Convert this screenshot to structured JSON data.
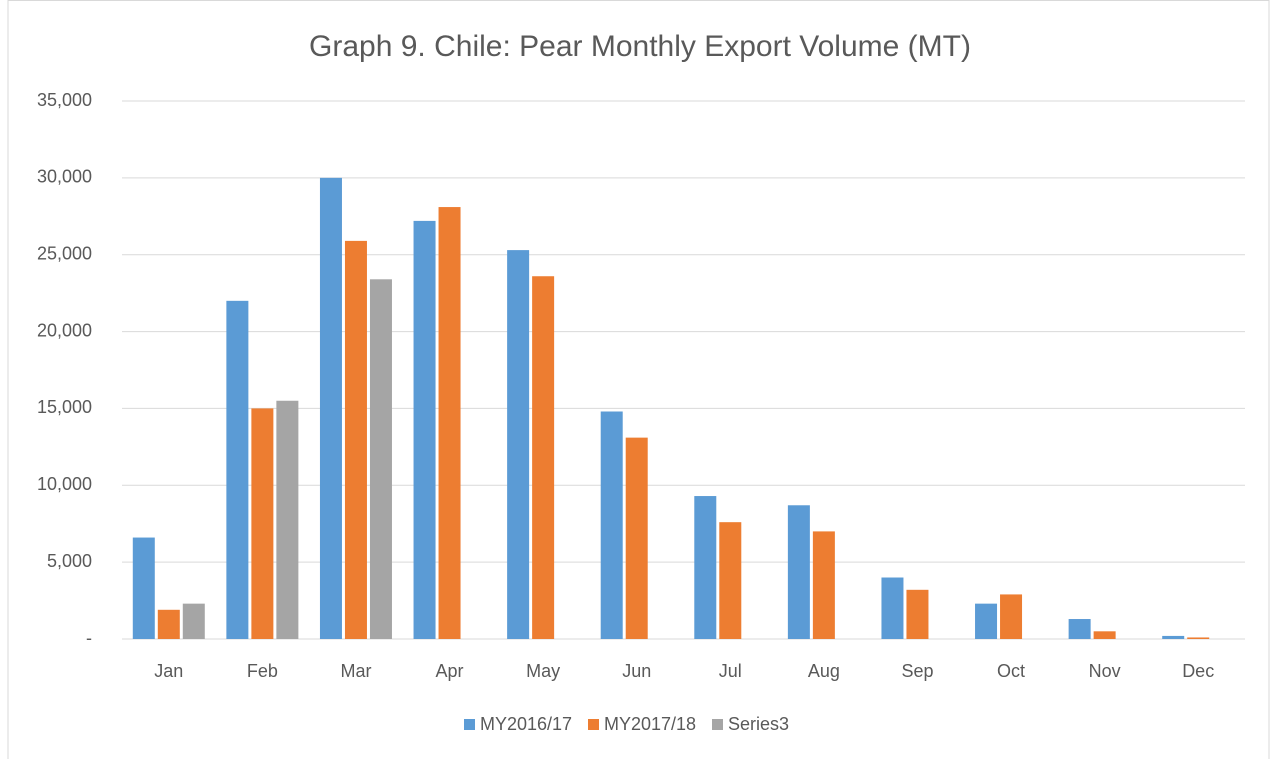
{
  "chart_data": {
    "type": "bar",
    "title": "Graph 9. Chile: Pear Monthly Export Volume (MT)",
    "categories": [
      "Jan",
      "Feb",
      "Mar",
      "Apr",
      "May",
      "Jun",
      "Jul",
      "Aug",
      "Sep",
      "Oct",
      "Nov",
      "Dec"
    ],
    "series": [
      {
        "name": "MY2016/17",
        "color": "#5b9bd5",
        "values": [
          6600,
          22000,
          30000,
          27200,
          25300,
          14800,
          9300,
          8700,
          4000,
          2300,
          1300,
          200
        ]
      },
      {
        "name": "MY2017/18",
        "color": "#ed7d31",
        "values": [
          1900,
          15000,
          25900,
          28100,
          23600,
          13100,
          7600,
          7000,
          3200,
          2900,
          500,
          100
        ]
      },
      {
        "name": "Series3",
        "color": "#a5a5a5",
        "values": [
          2300,
          15500,
          23400,
          null,
          null,
          null,
          null,
          null,
          null,
          null,
          null,
          null
        ]
      }
    ],
    "ylim": [
      0,
      35000
    ],
    "yticks": [
      {
        "value": 0,
        "label": "-"
      },
      {
        "value": 5000,
        "label": "5,000"
      },
      {
        "value": 10000,
        "label": "10,000"
      },
      {
        "value": 15000,
        "label": "15,000"
      },
      {
        "value": 20000,
        "label": "20,000"
      },
      {
        "value": 25000,
        "label": "25,000"
      },
      {
        "value": 30000,
        "label": "30,000"
      },
      {
        "value": 35000,
        "label": "35,000"
      }
    ],
    "grid": true,
    "legend": "bottom"
  }
}
